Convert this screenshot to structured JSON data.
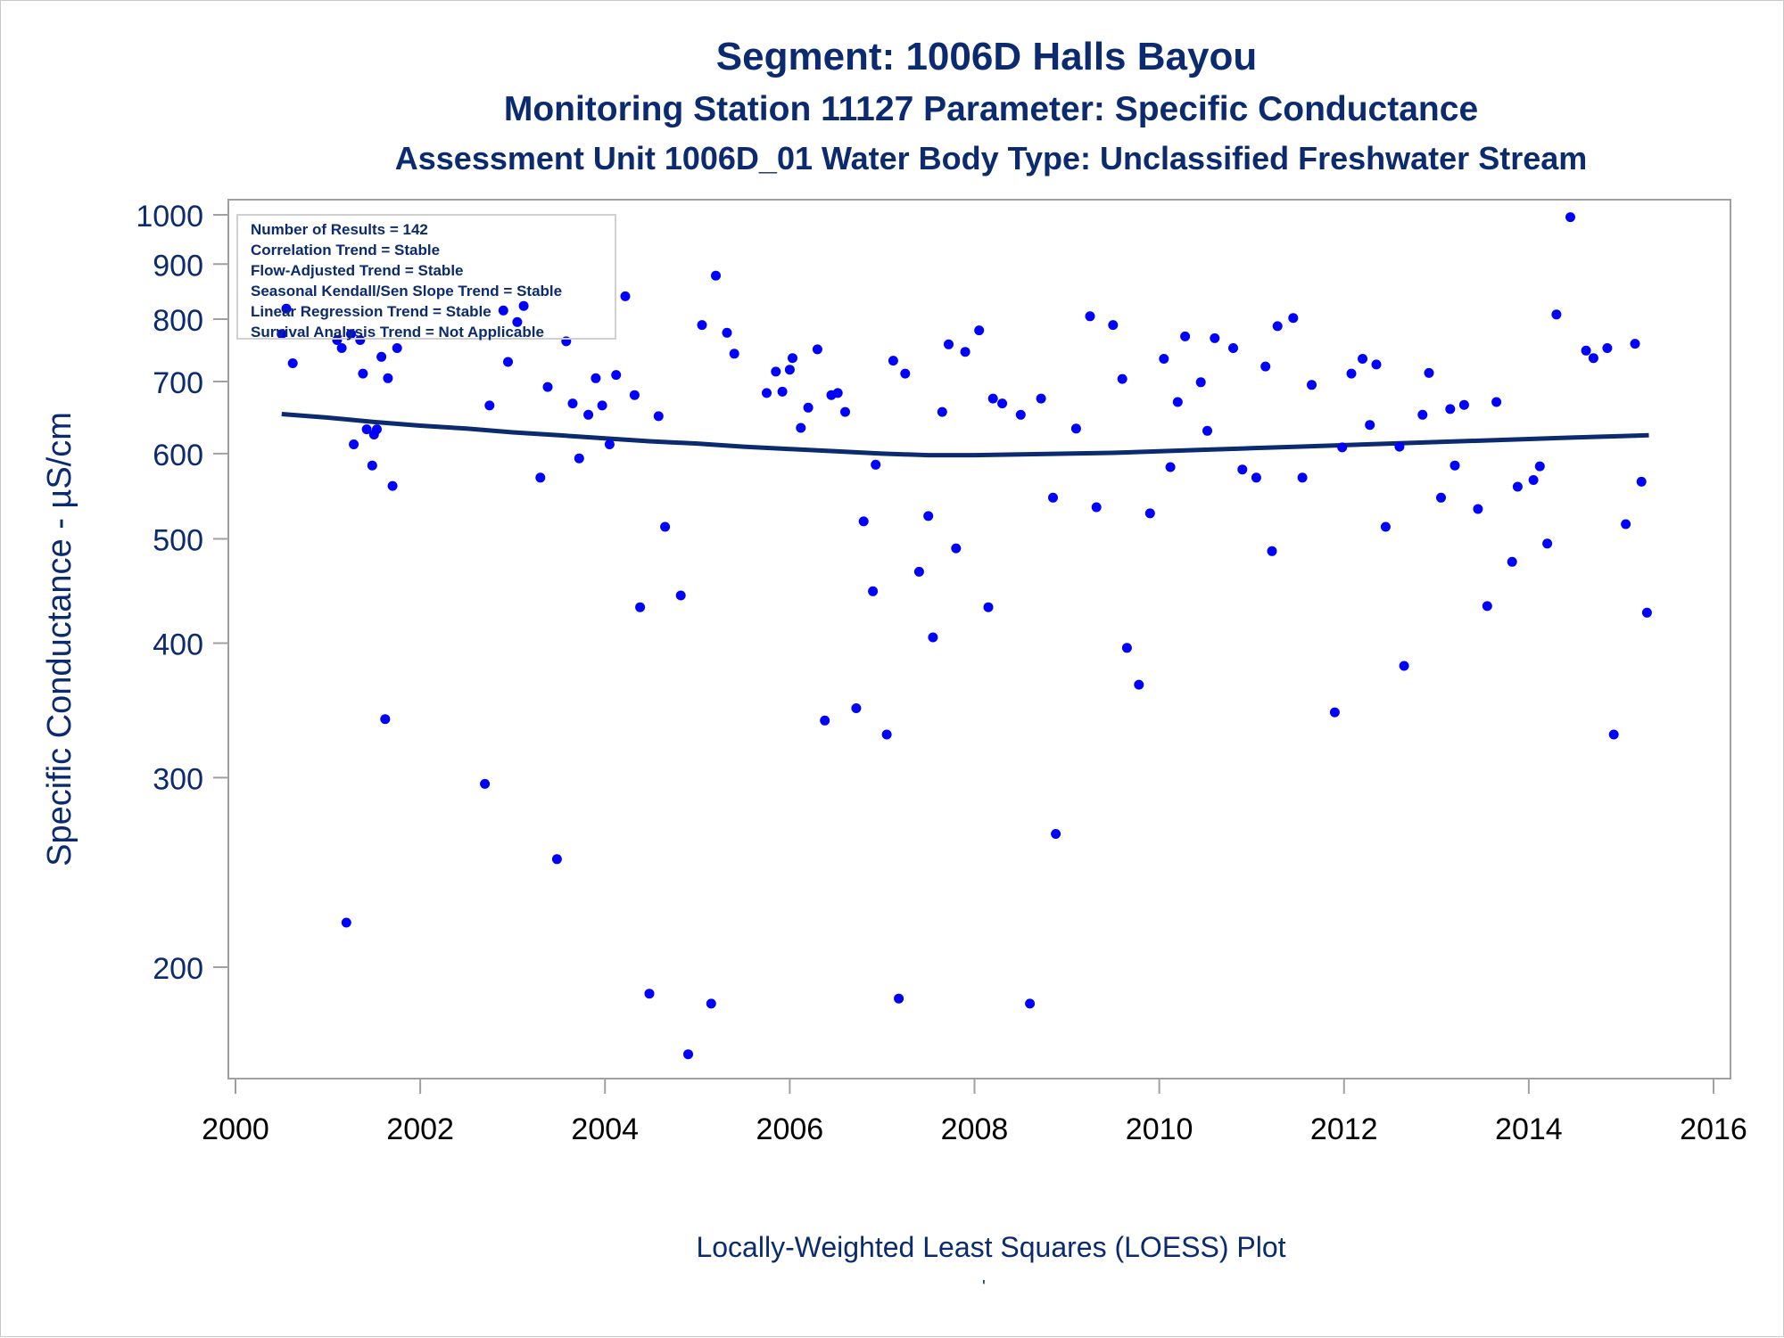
{
  "titles": {
    "line1": "Segment: 1006D  Halls Bayou",
    "line2": "Monitoring Station 11127 Parameter: Specific Conductance",
    "line3": "Assessment Unit 1006D_01   Water Body Type: Unclassified Freshwater Stream"
  },
  "footnote": "Locally-Weighted Least Squares (LOESS) Plot",
  "footnote_mark": "'",
  "stats": [
    "Number of Results = 142",
    "Correlation Trend = Stable",
    "Flow-Adjusted Trend = Stable",
    "Seasonal Kendall/Sen Slope Trend = Stable",
    "Linear Regression Trend = Stable",
    "Survival Analysis Trend = Not Applicable"
  ],
  "colors": {
    "text": "#0b2a6f",
    "points": "#0000ff",
    "loess": "#0b2a6f",
    "frame": "#a0a0a0"
  },
  "chart_data": {
    "type": "scatter",
    "ylabel": "Specific Conductance -  µS/cm",
    "xlabel": "",
    "y_scale": "log",
    "xlim": [
      2000,
      2016
    ],
    "ylim": [
      160,
      1000
    ],
    "x_ticks": [
      2000,
      2002,
      2004,
      2006,
      2008,
      2010,
      2012,
      2014,
      2016
    ],
    "y_ticks": [
      200,
      300,
      400,
      500,
      600,
      700,
      800,
      900,
      1000
    ],
    "grid": false,
    "series": [
      {
        "points": [
          [
            2000.5,
            775
          ],
          [
            2000.55,
            818
          ],
          [
            2000.62,
            728
          ],
          [
            2001.1,
            765
          ],
          [
            2001.15,
            752
          ],
          [
            2001.2,
            220
          ],
          [
            2001.25,
            775
          ],
          [
            2001.28,
            612
          ],
          [
            2001.35,
            765
          ],
          [
            2001.38,
            712
          ],
          [
            2001.42,
            632
          ],
          [
            2001.48,
            585
          ],
          [
            2001.5,
            625
          ],
          [
            2001.53,
            632
          ],
          [
            2001.58,
            738
          ],
          [
            2001.62,
            340
          ],
          [
            2001.65,
            705
          ],
          [
            2001.7,
            560
          ],
          [
            2001.75,
            752
          ],
          [
            2002.7,
            296
          ],
          [
            2002.75,
            665
          ],
          [
            2002.9,
            815
          ],
          [
            2002.95,
            730
          ],
          [
            2003.05,
            795
          ],
          [
            2003.12,
            823
          ],
          [
            2003.3,
            570
          ],
          [
            2003.38,
            692
          ],
          [
            2003.48,
            252
          ],
          [
            2003.58,
            763
          ],
          [
            2003.65,
            668
          ],
          [
            2003.72,
            594
          ],
          [
            2003.82,
            652
          ],
          [
            2003.9,
            705
          ],
          [
            2003.97,
            665
          ],
          [
            2004.05,
            612
          ],
          [
            2004.12,
            710
          ],
          [
            2004.22,
            840
          ],
          [
            2004.32,
            680
          ],
          [
            2004.38,
            432
          ],
          [
            2004.48,
            189
          ],
          [
            2004.58,
            650
          ],
          [
            2004.65,
            513
          ],
          [
            2004.82,
            443
          ],
          [
            2004.9,
            166
          ],
          [
            2005.05,
            790
          ],
          [
            2005.15,
            185
          ],
          [
            2005.2,
            878
          ],
          [
            2005.32,
            777
          ],
          [
            2005.4,
            743
          ],
          [
            2005.75,
            683
          ],
          [
            2005.85,
            715
          ],
          [
            2005.92,
            685
          ],
          [
            2006.0,
            718
          ],
          [
            2006.03,
            736
          ],
          [
            2006.12,
            634
          ],
          [
            2006.2,
            662
          ],
          [
            2006.3,
            750
          ],
          [
            2006.38,
            339
          ],
          [
            2006.45,
            680
          ],
          [
            2006.52,
            683
          ],
          [
            2006.6,
            656
          ],
          [
            2006.72,
            348
          ],
          [
            2006.8,
            519
          ],
          [
            2006.9,
            447
          ],
          [
            2006.93,
            586
          ],
          [
            2007.05,
            329
          ],
          [
            2007.12,
            732
          ],
          [
            2007.18,
            187
          ],
          [
            2007.25,
            712
          ],
          [
            2007.4,
            466
          ],
          [
            2007.5,
            525
          ],
          [
            2007.55,
            405
          ],
          [
            2007.65,
            656
          ],
          [
            2007.72,
            758
          ],
          [
            2007.8,
            490
          ],
          [
            2007.9,
            746
          ],
          [
            2008.05,
            781
          ],
          [
            2008.15,
            432
          ],
          [
            2008.2,
            675
          ],
          [
            2008.3,
            668
          ],
          [
            2008.5,
            652
          ],
          [
            2008.6,
            185
          ],
          [
            2008.72,
            675
          ],
          [
            2008.85,
            546
          ],
          [
            2008.88,
            266
          ],
          [
            2009.1,
            633
          ],
          [
            2009.25,
            805
          ],
          [
            2009.32,
            535
          ],
          [
            2009.5,
            790
          ],
          [
            2009.6,
            704
          ],
          [
            2009.65,
            396
          ],
          [
            2009.78,
            366
          ],
          [
            2009.9,
            528
          ],
          [
            2010.05,
            735
          ],
          [
            2010.12,
            583
          ],
          [
            2010.2,
            670
          ],
          [
            2010.28,
            771
          ],
          [
            2010.45,
            699
          ],
          [
            2010.52,
            630
          ],
          [
            2010.6,
            768
          ],
          [
            2010.8,
            752
          ],
          [
            2010.9,
            580
          ],
          [
            2011.05,
            570
          ],
          [
            2011.15,
            723
          ],
          [
            2011.22,
            487
          ],
          [
            2011.28,
            788
          ],
          [
            2011.45,
            802
          ],
          [
            2011.55,
            570
          ],
          [
            2011.65,
            695
          ],
          [
            2011.9,
            345
          ],
          [
            2011.98,
            608
          ],
          [
            2012.08,
            712
          ],
          [
            2012.2,
            735
          ],
          [
            2012.28,
            638
          ],
          [
            2012.35,
            726
          ],
          [
            2012.45,
            513
          ],
          [
            2012.6,
            609
          ],
          [
            2012.65,
            381
          ],
          [
            2012.85,
            652
          ],
          [
            2012.92,
            713
          ],
          [
            2013.05,
            546
          ],
          [
            2013.15,
            660
          ],
          [
            2013.2,
            585
          ],
          [
            2013.3,
            666
          ],
          [
            2013.45,
            533
          ],
          [
            2013.55,
            433
          ],
          [
            2013.65,
            670
          ],
          [
            2013.82,
            476
          ],
          [
            2013.88,
            559
          ],
          [
            2014.05,
            567
          ],
          [
            2014.12,
            584
          ],
          [
            2014.2,
            495
          ],
          [
            2014.3,
            808
          ],
          [
            2014.45,
            995
          ],
          [
            2014.62,
            748
          ],
          [
            2014.7,
            736
          ],
          [
            2014.85,
            752
          ],
          [
            2014.92,
            329
          ],
          [
            2015.05,
            516
          ],
          [
            2015.15,
            759
          ],
          [
            2015.22,
            565
          ],
          [
            2015.28,
            427
          ]
        ]
      }
    ],
    "loess": [
      [
        2000.5,
        653
      ],
      [
        2001.0,
        648
      ],
      [
        2001.5,
        642
      ],
      [
        2002.0,
        637
      ],
      [
        2002.5,
        633
      ],
      [
        2003.0,
        628
      ],
      [
        2003.5,
        624
      ],
      [
        2004.0,
        620
      ],
      [
        2004.5,
        616
      ],
      [
        2005.0,
        613
      ],
      [
        2005.5,
        609
      ],
      [
        2006.0,
        606
      ],
      [
        2006.5,
        603
      ],
      [
        2007.0,
        600
      ],
      [
        2007.5,
        598
      ],
      [
        2008.0,
        598
      ],
      [
        2008.5,
        599
      ],
      [
        2009.0,
        600
      ],
      [
        2009.5,
        601
      ],
      [
        2010.0,
        603
      ],
      [
        2010.5,
        605
      ],
      [
        2011.0,
        607
      ],
      [
        2011.5,
        609
      ],
      [
        2012.0,
        611
      ],
      [
        2012.5,
        613
      ],
      [
        2013.0,
        615
      ],
      [
        2013.5,
        617
      ],
      [
        2014.0,
        619
      ],
      [
        2014.5,
        621
      ],
      [
        2015.0,
        623
      ],
      [
        2015.3,
        624
      ]
    ]
  }
}
